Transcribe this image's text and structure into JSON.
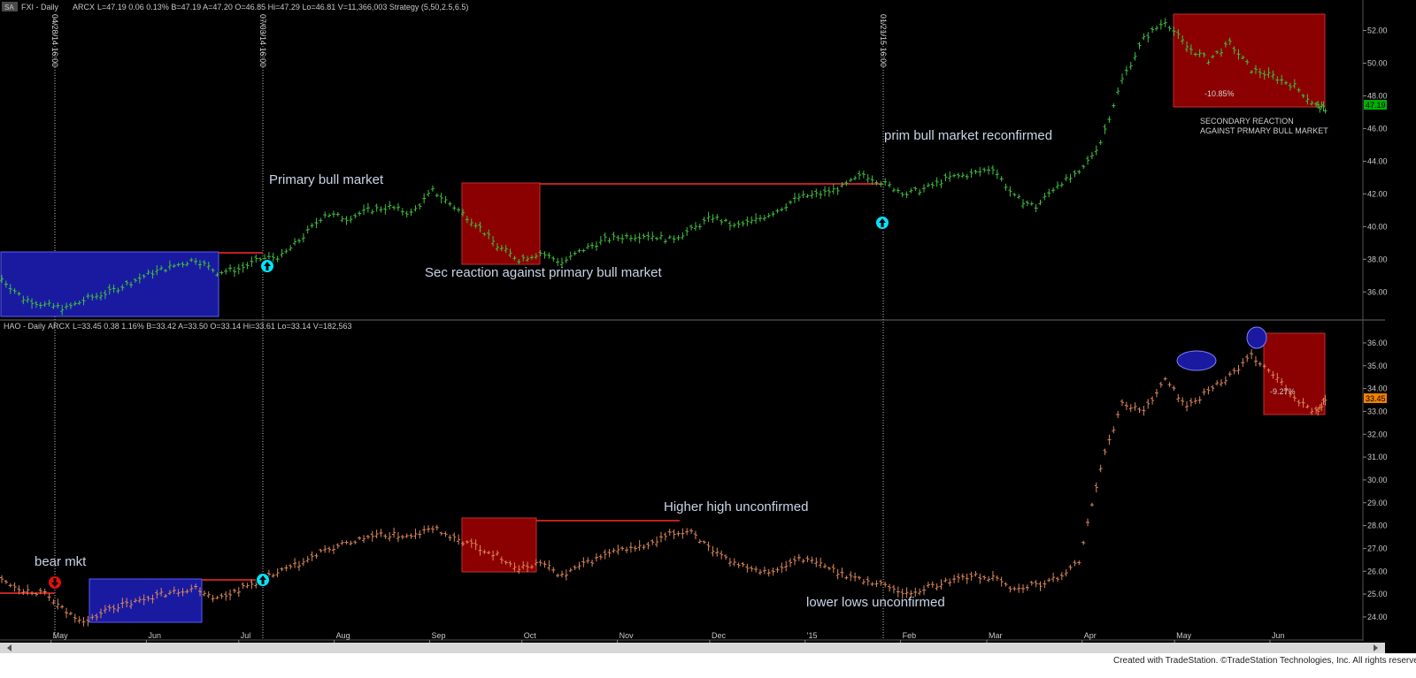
{
  "app": {
    "workspace_tab": "SA",
    "credit": "Created with TradeStation. ©TradeStation Technologies, Inc. All rights reserved."
  },
  "colors": {
    "background": "#000000",
    "fxi_bars": "#3fbf3f",
    "hao_bars": "#d9875a",
    "reaction_box": "#8b0000",
    "consolidation_box": "#1a1aa0",
    "level_line": "#ff2a2a",
    "annotation_text": "#c8d4e6",
    "signal_up": "#00e5ff",
    "signal_down": "#ff2020",
    "last_price_fxi": "#00b000",
    "last_price_hao": "#f08000"
  },
  "chart_data": [
    {
      "type": "ohlc",
      "panel": "top",
      "symbol": "FXI",
      "header": {
        "name": "FXI - Daily",
        "exchange": "ARCX",
        "fields": "L=47.19  0.06  0.13%  B=47.19  A=47.20  O=46.85  Hi=47.29  Lo=46.81  V=11,366,003  Strategy (5,50,2.5,6.5)"
      },
      "y_ticks": [
        "52.00",
        "50.00",
        "48.00",
        "46.00",
        "44.00",
        "42.00",
        "40.00",
        "38.00",
        "36.00"
      ],
      "ylim": [
        34.5,
        53
      ],
      "last_price": "47.19",
      "series": [
        {
          "name": "FXI close",
          "x": [
            "2014-04-15",
            "2014-04-22",
            "2014-04-29",
            "2014-05-06",
            "2014-05-13",
            "2014-05-20",
            "2014-05-27",
            "2014-06-03",
            "2014-06-10",
            "2014-06-17",
            "2014-06-24",
            "2014-07-01",
            "2014-07-08",
            "2014-07-15",
            "2014-07-22",
            "2014-07-29",
            "2014-08-05",
            "2014-08-12",
            "2014-08-19",
            "2014-08-26",
            "2014-09-02",
            "2014-09-09",
            "2014-09-16",
            "2014-09-23",
            "2014-09-30",
            "2014-10-07",
            "2014-10-14",
            "2014-10-21",
            "2014-10-28",
            "2014-11-04",
            "2014-11-11",
            "2014-11-18",
            "2014-11-25",
            "2014-12-02",
            "2014-12-09",
            "2014-12-16",
            "2014-12-23",
            "2014-12-30",
            "2015-01-06",
            "2015-01-13",
            "2015-01-20",
            "2015-01-27",
            "2015-02-03",
            "2015-02-10",
            "2015-02-17",
            "2015-02-24",
            "2015-03-03",
            "2015-03-10",
            "2015-03-17",
            "2015-03-24",
            "2015-03-31",
            "2015-04-07",
            "2015-04-14",
            "2015-04-21",
            "2015-04-28",
            "2015-05-05",
            "2015-05-12",
            "2015-05-19",
            "2015-05-26",
            "2015-06-02",
            "2015-06-09",
            "2015-06-16",
            "2015-06-19"
          ],
          "values": [
            36.8,
            35.6,
            35.2,
            35.0,
            35.6,
            36.0,
            36.6,
            37.2,
            37.6,
            38.0,
            37.2,
            37.4,
            38.0,
            38.2,
            39.4,
            40.8,
            40.5,
            41.0,
            41.2,
            40.8,
            42.2,
            41.2,
            40.2,
            38.8,
            38.0,
            38.4,
            37.8,
            38.6,
            39.2,
            39.4,
            39.5,
            39.2,
            39.8,
            40.6,
            40.0,
            40.4,
            41.0,
            41.8,
            42.0,
            42.4,
            43.2,
            42.6,
            42.0,
            42.4,
            43.0,
            43.2,
            43.6,
            41.8,
            41.2,
            42.6,
            43.2,
            45.2,
            49.0,
            51.5,
            52.6,
            51.0,
            50.2,
            51.2,
            49.6,
            49.2,
            48.6,
            47.4,
            47.2
          ]
        }
      ],
      "annotations": [
        {
          "text": "Primary bull market"
        },
        {
          "text": "Sec  reaction against primary bull market"
        },
        {
          "text": "prim  bull market reconfirmed"
        },
        {
          "text": "-10.85%"
        },
        {
          "text": "SECONDARY REACTION"
        },
        {
          "text": "AGAINST PRMARY BULL MARKET"
        }
      ]
    },
    {
      "type": "ohlc",
      "panel": "bottom",
      "symbol": "HAO",
      "header": {
        "name": "HAO - Daily",
        "exchange": "ARCX",
        "fields": "L=33.45  0.38  1.16%  B=33.42  A=33.50  O=33.14  Hi=33.61  Lo=33.14  V=182,563"
      },
      "y_ticks": [
        "36.00",
        "35.00",
        "34.00",
        "33.00",
        "32.00",
        "31.00",
        "30.00",
        "29.00",
        "28.00",
        "27.00",
        "26.00",
        "25.00",
        "24.00"
      ],
      "ylim": [
        23.3,
        36.5
      ],
      "last_price": "33.45",
      "series": [
        {
          "name": "HAO close",
          "x": [
            "2014-04-15",
            "2014-04-22",
            "2014-04-29",
            "2014-05-06",
            "2014-05-13",
            "2014-05-20",
            "2014-05-27",
            "2014-06-03",
            "2014-06-10",
            "2014-06-17",
            "2014-06-24",
            "2014-07-01",
            "2014-07-08",
            "2014-07-15",
            "2014-07-22",
            "2014-07-29",
            "2014-08-05",
            "2014-08-12",
            "2014-08-19",
            "2014-08-26",
            "2014-09-02",
            "2014-09-09",
            "2014-09-16",
            "2014-09-23",
            "2014-09-30",
            "2014-10-07",
            "2014-10-14",
            "2014-10-21",
            "2014-10-28",
            "2014-11-04",
            "2014-11-11",
            "2014-11-18",
            "2014-11-25",
            "2014-12-02",
            "2014-12-09",
            "2014-12-16",
            "2014-12-23",
            "2014-12-30",
            "2015-01-06",
            "2015-01-13",
            "2015-01-20",
            "2015-01-27",
            "2015-02-03",
            "2015-02-10",
            "2015-02-17",
            "2015-02-24",
            "2015-03-03",
            "2015-03-10",
            "2015-03-17",
            "2015-03-24",
            "2015-03-31",
            "2015-04-07",
            "2015-04-14",
            "2015-04-21",
            "2015-04-28",
            "2015-05-05",
            "2015-05-12",
            "2015-05-19",
            "2015-05-26",
            "2015-06-02",
            "2015-06-09",
            "2015-06-16",
            "2015-06-19"
          ],
          "values": [
            25.6,
            25.2,
            25.0,
            24.2,
            23.8,
            24.4,
            24.6,
            24.9,
            25.1,
            25.3,
            24.8,
            25.2,
            25.6,
            26.0,
            26.4,
            26.9,
            27.2,
            27.5,
            27.6,
            27.5,
            27.9,
            27.4,
            27.1,
            26.7,
            26.1,
            26.4,
            25.8,
            26.3,
            26.7,
            27.0,
            27.1,
            27.6,
            27.8,
            26.8,
            26.4,
            26.1,
            26.0,
            26.6,
            26.3,
            25.9,
            25.6,
            25.4,
            25.0,
            25.3,
            25.6,
            25.8,
            25.7,
            25.2,
            25.4,
            25.7,
            26.4,
            30.6,
            33.4,
            33.0,
            34.4,
            33.2,
            33.9,
            34.6,
            35.4,
            34.6,
            33.6,
            33.0,
            33.45
          ]
        }
      ],
      "annotations": [
        {
          "text": "bear mkt"
        },
        {
          "text": "Higher high unconfirmed"
        },
        {
          "text": "lower  lows unconfirmed"
        },
        {
          "text": "-9.27%"
        }
      ]
    }
  ],
  "x_axis": {
    "ticks": [
      "May",
      "Jun",
      "Jul",
      "Aug",
      "Sep",
      "Oct",
      "Nov",
      "Dec",
      "'15",
      "Feb",
      "Mar",
      "Apr",
      "May",
      "Jun"
    ],
    "markers": [
      "04/28/14 16:00",
      "07/03/14 16:00",
      "01/21/15 16:00"
    ]
  }
}
